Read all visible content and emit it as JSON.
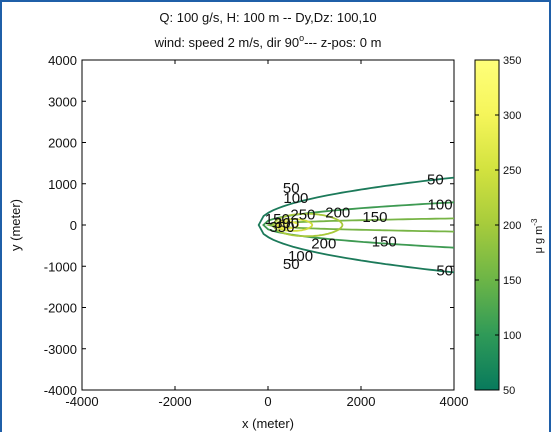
{
  "window": {
    "accent_border": "#1f5fa8"
  },
  "title": {
    "line1": "Q: 100 g/s, H: 100 m -- Dy,Dz: 100,10",
    "line2_prefix": "wind: speed 2 m/s, dir 90",
    "line2_sup": "o",
    "line2_suffix": "--- z-pos: 0 m"
  },
  "chart_data": {
    "type": "contour",
    "xlabel": "x (meter)",
    "ylabel": "y (meter)",
    "xlim": [
      -4000,
      4000
    ],
    "ylim": [
      -4000,
      4000
    ],
    "x_ticks": [
      -4000,
      -2000,
      0,
      2000,
      4000
    ],
    "y_ticks": [
      -4000,
      -3000,
      -2000,
      -1000,
      0,
      1000,
      2000,
      3000,
      4000
    ],
    "source_location": [
      0,
      0
    ],
    "wind_direction_deg": 90,
    "levels": [
      {
        "value": 50,
        "x_back": -200,
        "x_end": 4000,
        "half_width_at_end": 1150,
        "color": "#1c7a5a",
        "labels": [
          {
            "text": "50",
            "x": 500,
            "y": 900
          },
          {
            "text": "50",
            "x": 3600,
            "y": 1100
          },
          {
            "text": "50",
            "x": 3800,
            "y": -1100
          },
          {
            "text": "50",
            "x": 500,
            "y": -950
          }
        ]
      },
      {
        "value": 100,
        "x_back": -100,
        "x_end": 4000,
        "half_width_at_end": 550,
        "color": "#3e9a52",
        "labels": [
          {
            "text": "100",
            "x": 600,
            "y": 650
          },
          {
            "text": "100",
            "x": 3700,
            "y": 500
          },
          {
            "text": "100",
            "x": 700,
            "y": -750
          }
        ]
      },
      {
        "value": 150,
        "x_back": 20,
        "x_end": 4000,
        "half_width_at_end": 160,
        "color": "#77b445",
        "labels": [
          {
            "text": "150",
            "x": 2300,
            "y": 200
          },
          {
            "text": "150",
            "x": 2500,
            "y": -400
          },
          {
            "text": "150",
            "x": 200,
            "y": 150
          }
        ]
      },
      {
        "value": 200,
        "x_back": 120,
        "x_end": 1600,
        "half_width_at_end": 0,
        "color": "#a8c93a",
        "labels": [
          {
            "text": "200",
            "x": 1500,
            "y": 300
          },
          {
            "text": "200",
            "x": 1200,
            "y": -450
          }
        ]
      },
      {
        "value": 250,
        "x_back": 170,
        "x_end": 950,
        "half_width_at_end": 0,
        "color": "#cfdc3c",
        "labels": [
          {
            "text": "250",
            "x": 750,
            "y": 250
          }
        ]
      },
      {
        "value": 300,
        "x_back": 200,
        "x_end": 650,
        "half_width_at_end": 0,
        "color": "#e8e746",
        "labels": [
          {
            "text": "300",
            "x": 400,
            "y": 50
          }
        ]
      },
      {
        "value": 350,
        "x_back": 240,
        "x_end": 420,
        "half_width_at_end": 0,
        "color": "#f4f25c",
        "labels": [
          {
            "text": "350",
            "x": 300,
            "y": -50
          }
        ]
      }
    ]
  },
  "colorbar": {
    "ticks": [
      50,
      100,
      150,
      200,
      250,
      300,
      350
    ],
    "range": [
      50,
      350
    ],
    "label_prefix": "μ g m",
    "label_sup": "-3",
    "colors": [
      "#087a5c",
      "#2f9a58",
      "#6cb547",
      "#a6cb3c",
      "#d2e23f",
      "#f5f55a",
      "#ffff7a"
    ]
  }
}
